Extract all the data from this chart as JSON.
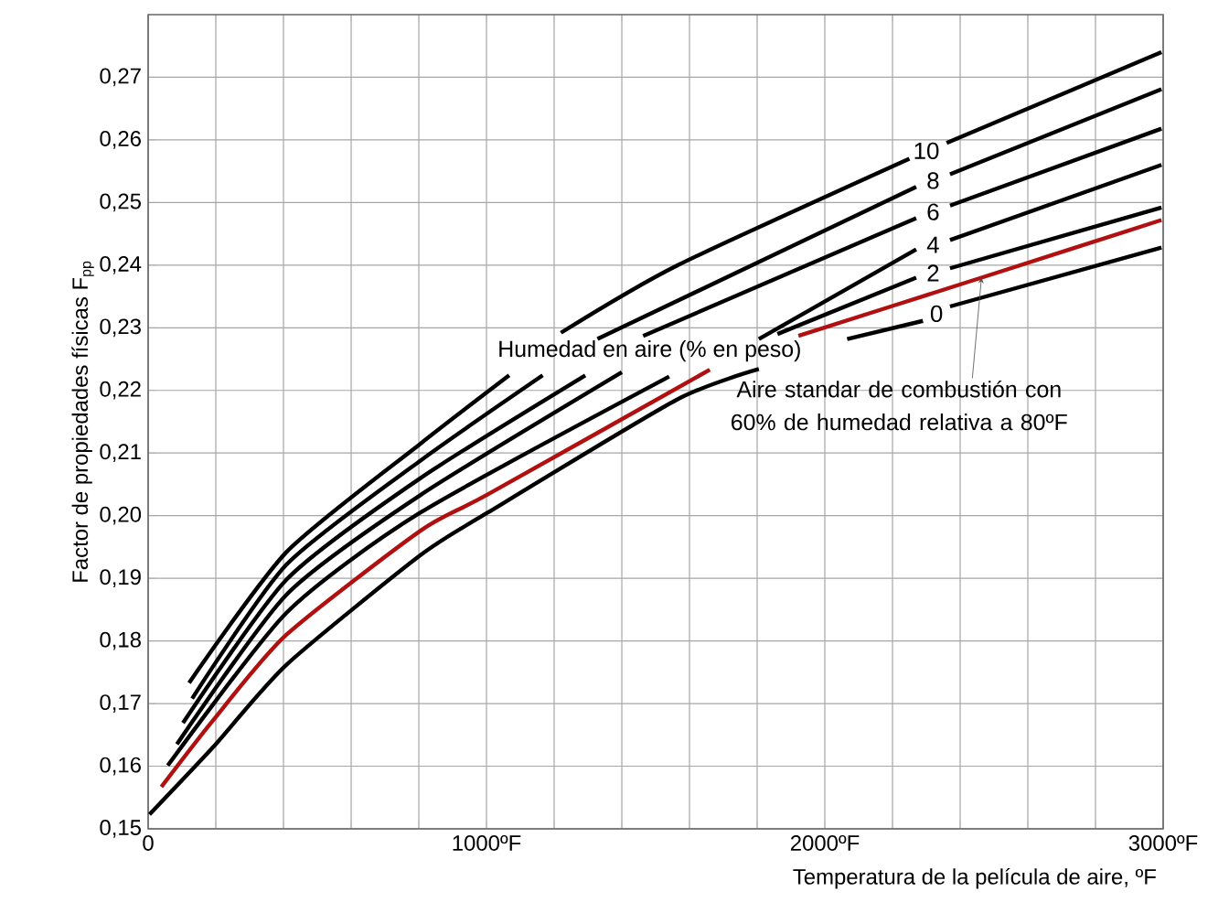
{
  "chart_data": {
    "type": "line",
    "xlabel": "Temperatura de la película de aire, ºF",
    "ylabel": "Factor de propiedades físicas F$_{pp}$",
    "xlim": [
      0,
      3000
    ],
    "ylim": [
      0.15,
      0.28
    ],
    "xticks": [
      {
        "value": 0,
        "label": "0"
      },
      {
        "value": 200,
        "label": null
      },
      {
        "value": 400,
        "label": null
      },
      {
        "value": 600,
        "label": null
      },
      {
        "value": 800,
        "label": null
      },
      {
        "value": 1000,
        "label": "1000ºF"
      },
      {
        "value": 1200,
        "label": null
      },
      {
        "value": 1400,
        "label": null
      },
      {
        "value": 1600,
        "label": null
      },
      {
        "value": 1800,
        "label": null
      },
      {
        "value": 2000,
        "label": "2000ºF"
      },
      {
        "value": 2200,
        "label": null
      },
      {
        "value": 2400,
        "label": null
      },
      {
        "value": 2600,
        "label": null
      },
      {
        "value": 2800,
        "label": null
      },
      {
        "value": 3000,
        "label": "3000ºF"
      }
    ],
    "yticks": [
      {
        "value": 0.15,
        "label": "0,15"
      },
      {
        "value": 0.16,
        "label": "0,16"
      },
      {
        "value": 0.17,
        "label": "0,17"
      },
      {
        "value": 0.18,
        "label": "0,18"
      },
      {
        "value": 0.19,
        "label": "0,19"
      },
      {
        "value": 0.2,
        "label": "0,20"
      },
      {
        "value": 0.21,
        "label": "0,21"
      },
      {
        "value": 0.22,
        "label": "0,22"
      },
      {
        "value": 0.23,
        "label": "0,23"
      },
      {
        "value": 0.24,
        "label": "0,24"
      },
      {
        "value": 0.25,
        "label": "0,25"
      },
      {
        "value": 0.26,
        "label": "0,26"
      },
      {
        "value": 0.27,
        "label": "0,27"
      }
    ],
    "grid": true,
    "marker": "none",
    "line_style": "solid",
    "series": [
      {
        "name": "10",
        "color": "#000000",
        "x": [
          121,
          409,
          805,
          1067,
          1140,
          1220,
          1562,
          2250,
          2300,
          2360,
          2995
        ],
        "values": [
          0.1733,
          0.1942,
          0.2115,
          0.2224,
          null,
          0.2292,
          0.2399,
          0.257,
          null,
          0.2595,
          0.274
        ]
      },
      {
        "name": "8",
        "color": "#000000",
        "x": [
          130,
          409,
          805,
          1166,
          1250,
          1328,
          2270,
          2320,
          2370,
          2995
        ],
        "values": [
          0.1708,
          0.1922,
          0.2088,
          0.2224,
          null,
          0.2282,
          0.2525,
          null,
          0.2545,
          0.2681
        ]
      },
      {
        "name": "6",
        "color": "#000000",
        "x": [
          103,
          409,
          805,
          1292,
          1380,
          1463,
          2270,
          2320,
          2370,
          2995
        ],
        "values": [
          0.1669,
          0.1898,
          0.206,
          0.2224,
          null,
          0.2287,
          0.2475,
          null,
          0.2495,
          0.2618
        ]
      },
      {
        "name": "4",
        "color": "#000000",
        "x": [
          85,
          409,
          805,
          1400,
          1600,
          1805,
          2270,
          2320,
          2370,
          2995
        ],
        "values": [
          0.1635,
          0.1874,
          0.2033,
          0.2229,
          null,
          0.2282,
          0.2425,
          null,
          0.244,
          0.256
        ]
      },
      {
        "name": "2",
        "color": "#000000",
        "x": [
          58,
          409,
          805,
          1540,
          1700,
          1860,
          2270,
          2320,
          2370,
          2995
        ],
        "values": [
          0.1601,
          0.1845,
          0.2005,
          0.2222,
          null,
          0.229,
          0.238,
          null,
          0.2395,
          0.2492
        ]
      },
      {
        "color": "#b01010",
        "x": [
          39,
          193,
          409,
          805,
          1004,
          1660,
          1790,
          1922,
          2463,
          2995
        ],
        "values": [
          0.1567,
          0.1674,
          0.181,
          0.1976,
          0.2034,
          0.2233,
          null,
          0.2287,
          0.238,
          0.2472
        ]
      },
      {
        "name": "0",
        "color": "#000000",
        "x": [
          4,
          193,
          409,
          805,
          1004,
          1562,
          1805,
          1930,
          2066,
          2290,
          2330,
          2370,
          2995
        ],
        "values": [
          0.1523,
          0.1631,
          0.1762,
          0.1937,
          0.2005,
          0.2185,
          0.2234,
          null,
          0.2282,
          0.2311,
          null,
          0.2334,
          0.2428
        ]
      }
    ],
    "annotations": [
      "Humedad en aire (% en peso)",
      {
        "text": "Aire standar de combustión con 60% de humedad relativa a 80ºF",
        "x": 2463,
        "y": 0.238
      }
    ]
  }
}
